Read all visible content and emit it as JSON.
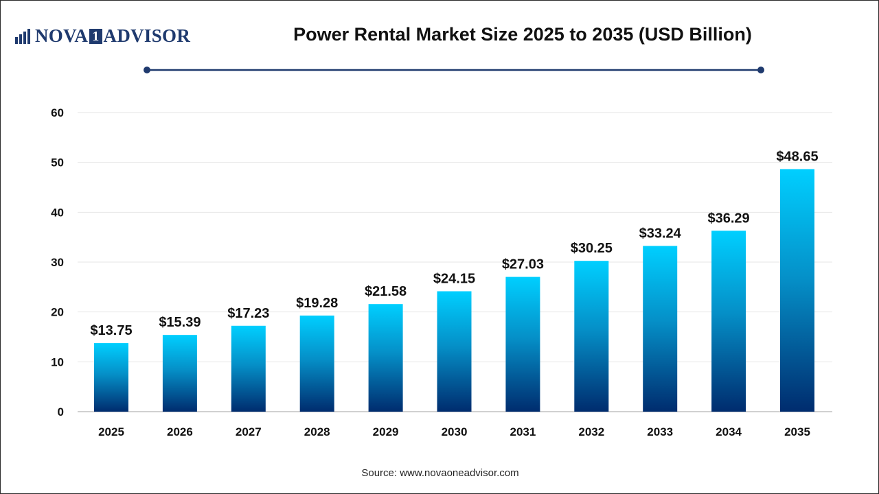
{
  "brand": {
    "part1": "NOVA",
    "box": "1",
    "part2": "ADVISOR"
  },
  "source": "Source: www.novaoneadvisor.com",
  "colors": {
    "bar_top": "#00CFFF",
    "bar_bottom": "#002C6E",
    "brand": "#1F3A6E",
    "grid": "#E6E6E6",
    "rule": "#1F3A6E"
  },
  "chart_data": {
    "type": "bar",
    "title": "Power Rental Market Size 2025 to 2035 (USD Billion)",
    "xlabel": "",
    "ylabel": "",
    "categories": [
      "2025",
      "2026",
      "2027",
      "2028",
      "2029",
      "2030",
      "2031",
      "2032",
      "2033",
      "2034",
      "2035"
    ],
    "values": [
      13.75,
      15.39,
      17.23,
      19.28,
      21.58,
      24.15,
      27.03,
      30.25,
      33.24,
      36.29,
      48.65
    ],
    "value_labels": [
      "$13.75",
      "$15.39",
      "$17.23",
      "$19.28",
      "$21.58",
      "$24.15",
      "$27.03",
      "$30.25",
      "$33.24",
      "$36.29",
      "$48.65"
    ],
    "ylim": [
      0,
      60
    ],
    "yticks": [
      0,
      10,
      20,
      30,
      40,
      50,
      60
    ],
    "grid": true,
    "legend": "none"
  }
}
